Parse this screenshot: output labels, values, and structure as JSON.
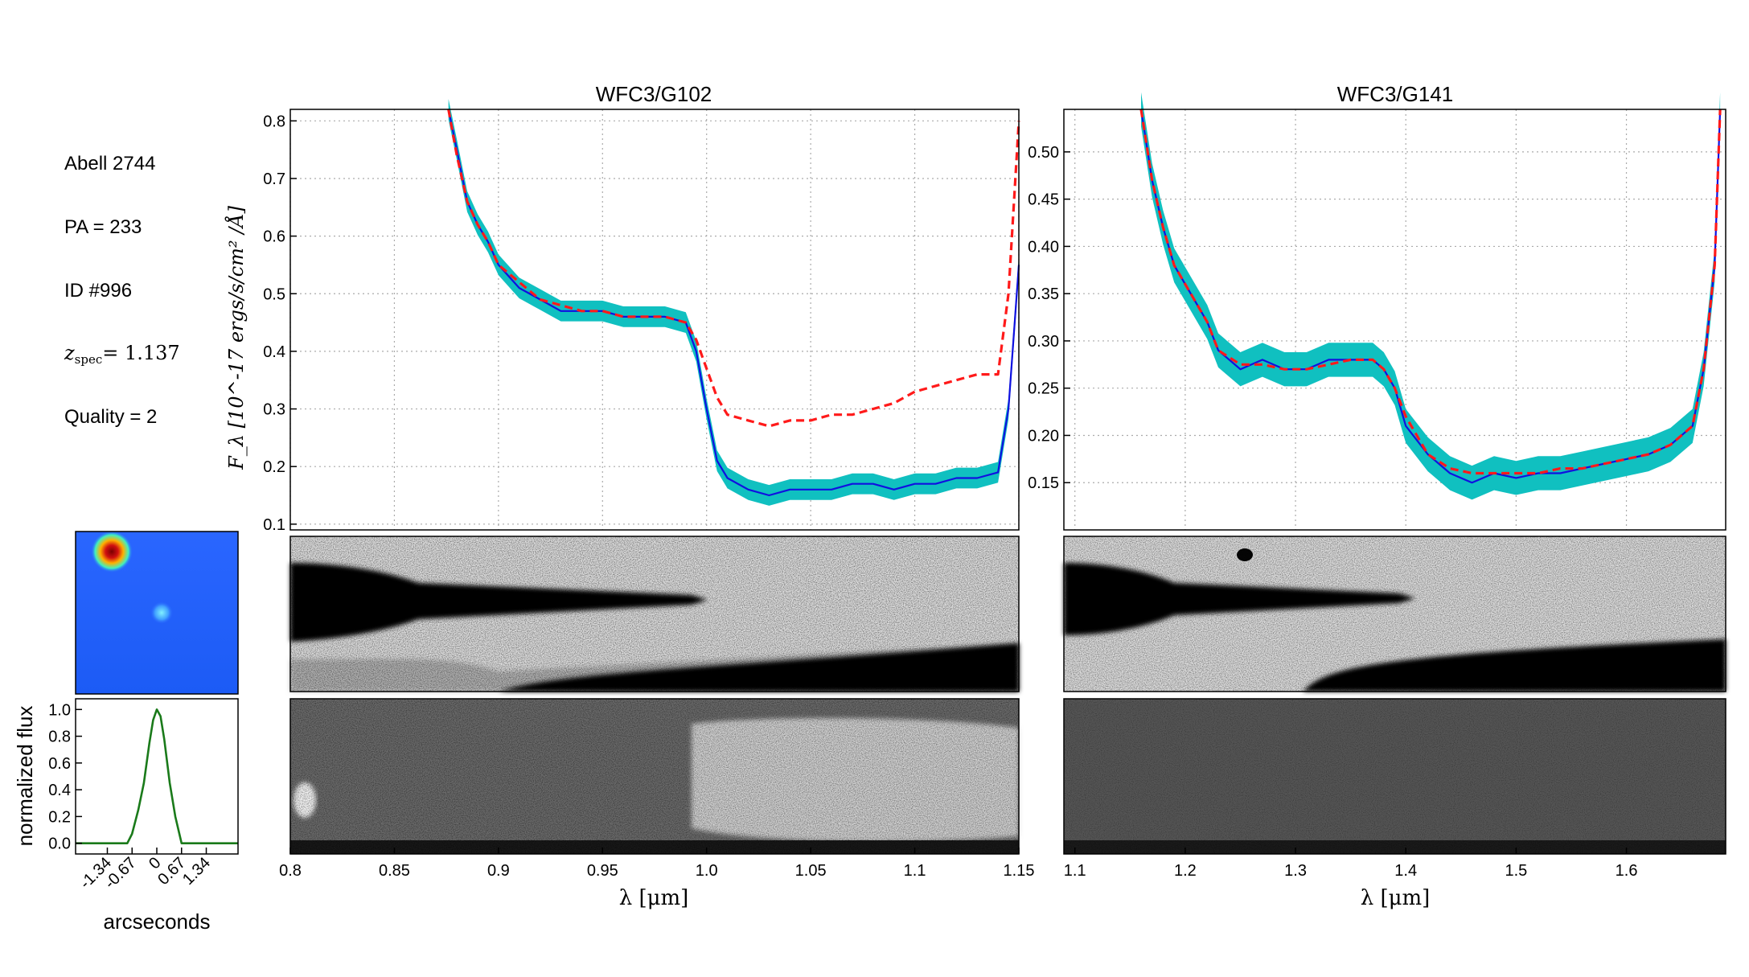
{
  "info": {
    "field": "Abell 2744",
    "pa": "PA = 233",
    "id": "ID #996",
    "zspec_symbol": "z",
    "zspec_sub": "spec",
    "zspec_value": "= 1.137",
    "quality": "Quality = 2"
  },
  "colors": {
    "error_band": "#10c0c0",
    "spectrum": "#1010e0",
    "model": "#ff1a1a",
    "profile": "#1a7a1a",
    "thumb_bg": "#1f5fff",
    "grid": "#aaaaaa"
  },
  "chart_data": [
    {
      "type": "line",
      "title": "WFC3/G102",
      "xlabel": "λ [μm]",
      "ylabel": "F_λ [10^-17 ergs/s/cm² /Å]",
      "xlim": [
        0.8,
        1.15
      ],
      "ylim": [
        0.09,
        0.82
      ],
      "xticks": [
        "0.8",
        "0.85",
        "0.9",
        "0.95",
        "1.0",
        "1.05",
        "1.1",
        "1.15"
      ],
      "yticks": [
        "0.1",
        "0.2",
        "0.3",
        "0.4",
        "0.5",
        "0.6",
        "0.7",
        "0.8"
      ],
      "grid": true,
      "series": [
        {
          "style": "solid",
          "x": [
            0.876,
            0.88,
            0.885,
            0.89,
            0.895,
            0.9,
            0.91,
            0.92,
            0.93,
            0.94,
            0.95,
            0.96,
            0.97,
            0.98,
            0.99,
            0.995,
            1.0,
            1.005,
            1.01,
            1.02,
            1.03,
            1.04,
            1.05,
            1.06,
            1.07,
            1.08,
            1.09,
            1.1,
            1.11,
            1.12,
            1.13,
            1.14,
            1.145,
            1.15
          ],
          "y": [
            0.82,
            0.75,
            0.66,
            0.62,
            0.59,
            0.55,
            0.51,
            0.49,
            0.47,
            0.47,
            0.47,
            0.46,
            0.46,
            0.46,
            0.45,
            0.4,
            0.3,
            0.21,
            0.18,
            0.16,
            0.15,
            0.16,
            0.16,
            0.16,
            0.17,
            0.17,
            0.16,
            0.17,
            0.17,
            0.18,
            0.18,
            0.19,
            0.3,
            0.55
          ]
        },
        {
          "style": "dashed",
          "x": [
            0.876,
            0.88,
            0.885,
            0.89,
            0.895,
            0.9,
            0.91,
            0.92,
            0.93,
            0.94,
            0.95,
            0.96,
            0.97,
            0.98,
            0.99,
            0.995,
            1.0,
            1.005,
            1.01,
            1.02,
            1.03,
            1.04,
            1.05,
            1.06,
            1.07,
            1.08,
            1.09,
            1.1,
            1.11,
            1.12,
            1.13,
            1.14,
            1.145,
            1.15
          ],
          "y": [
            0.82,
            0.74,
            0.66,
            0.62,
            0.59,
            0.55,
            0.52,
            0.49,
            0.48,
            0.47,
            0.47,
            0.46,
            0.46,
            0.46,
            0.45,
            0.42,
            0.37,
            0.32,
            0.29,
            0.28,
            0.27,
            0.28,
            0.28,
            0.29,
            0.29,
            0.3,
            0.31,
            0.33,
            0.34,
            0.35,
            0.36,
            0.36,
            0.5,
            0.8
          ]
        }
      ]
    },
    {
      "type": "line",
      "title": "WFC3/G141",
      "xlabel": "λ [μm]",
      "ylabel": "",
      "xlim": [
        1.09,
        1.69
      ],
      "ylim": [
        0.1,
        0.545
      ],
      "xticks": [
        "1.1",
        "1.2",
        "1.3",
        "1.4",
        "1.5",
        "1.6"
      ],
      "yticks": [
        "0.15",
        "0.20",
        "0.25",
        "0.30",
        "0.35",
        "0.40",
        "0.45",
        "0.50"
      ],
      "grid": true,
      "series": [
        {
          "style": "solid",
          "x": [
            1.16,
            1.17,
            1.18,
            1.19,
            1.2,
            1.21,
            1.22,
            1.23,
            1.25,
            1.27,
            1.29,
            1.31,
            1.33,
            1.35,
            1.37,
            1.38,
            1.39,
            1.4,
            1.42,
            1.44,
            1.46,
            1.48,
            1.5,
            1.52,
            1.54,
            1.56,
            1.58,
            1.6,
            1.62,
            1.64,
            1.66,
            1.67,
            1.68,
            1.685
          ],
          "y": [
            0.545,
            0.47,
            0.42,
            0.38,
            0.36,
            0.34,
            0.32,
            0.29,
            0.27,
            0.28,
            0.27,
            0.27,
            0.28,
            0.28,
            0.28,
            0.27,
            0.25,
            0.21,
            0.18,
            0.16,
            0.15,
            0.16,
            0.155,
            0.16,
            0.16,
            0.165,
            0.17,
            0.175,
            0.18,
            0.19,
            0.21,
            0.27,
            0.38,
            0.545
          ]
        },
        {
          "style": "dashed",
          "x": [
            1.16,
            1.17,
            1.18,
            1.19,
            1.2,
            1.21,
            1.22,
            1.23,
            1.25,
            1.27,
            1.29,
            1.31,
            1.33,
            1.35,
            1.37,
            1.38,
            1.39,
            1.4,
            1.42,
            1.44,
            1.46,
            1.48,
            1.5,
            1.52,
            1.54,
            1.56,
            1.58,
            1.6,
            1.62,
            1.64,
            1.66,
            1.67,
            1.68,
            1.685
          ],
          "y": [
            0.545,
            0.47,
            0.42,
            0.38,
            0.36,
            0.34,
            0.32,
            0.29,
            0.275,
            0.275,
            0.27,
            0.27,
            0.275,
            0.28,
            0.28,
            0.27,
            0.25,
            0.22,
            0.18,
            0.165,
            0.16,
            0.16,
            0.16,
            0.16,
            0.165,
            0.165,
            0.17,
            0.175,
            0.18,
            0.19,
            0.21,
            0.27,
            0.38,
            0.545
          ]
        }
      ]
    },
    {
      "type": "line",
      "title": "",
      "xlabel": "arcseconds",
      "ylabel": "normalized flux",
      "xlim": [
        -2.2,
        2.2
      ],
      "ylim": [
        -0.08,
        1.08
      ],
      "xticks": [
        "-1.34",
        "-0.67",
        "0",
        "0.67",
        "1.34"
      ],
      "yticks": [
        "0.0",
        "0.2",
        "0.4",
        "0.6",
        "0.8",
        "1.0"
      ],
      "series": [
        {
          "style": "solid",
          "x": [
            -2.2,
            -0.8,
            -0.67,
            -0.5,
            -0.35,
            -0.2,
            -0.1,
            0.0,
            0.1,
            0.2,
            0.35,
            0.5,
            0.67,
            0.8,
            2.2
          ],
          "y": [
            0.0,
            0.0,
            0.07,
            0.25,
            0.45,
            0.75,
            0.92,
            1.0,
            0.95,
            0.78,
            0.45,
            0.2,
            0.0,
            0.0,
            0.0
          ]
        }
      ]
    }
  ]
}
